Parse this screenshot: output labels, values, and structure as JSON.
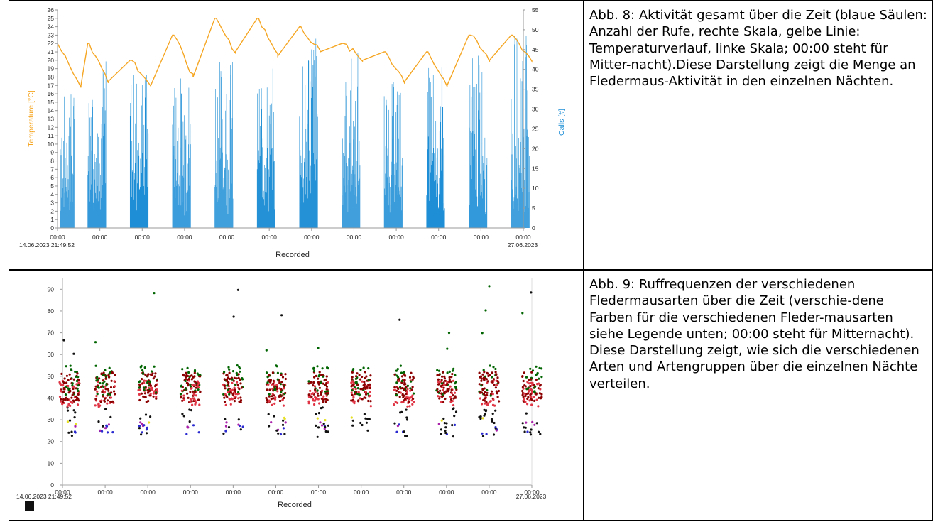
{
  "figure1": {
    "caption": "Abb. 8: Aktivität gesamt über die Zeit (blaue Säulen: Anzahl der Rufe, rechte Skala, gelbe Linie: Temperaturverlauf, linke Skala; 00:00 steht für Mitter-nacht).Diese Darstellung zeigt die Menge an Fledermaus-Aktivität in den einzelnen Nächten.",
    "chart_data": {
      "type": "bar",
      "xlabel": "Recorded",
      "ylabel_left": "Temperature [°C]",
      "ylabel_right": "Calls [#]",
      "ylim_left": [
        0,
        26
      ],
      "ylim_right": [
        0,
        55
      ],
      "y_ticks_left": [
        "0",
        "1",
        "2",
        "3",
        "4",
        "5",
        "6",
        "7",
        "8",
        "9",
        "10",
        "11",
        "12",
        "13",
        "14",
        "15",
        "16",
        "17",
        "18",
        "19",
        "20",
        "21",
        "22",
        "23",
        "24",
        "25",
        "26"
      ],
      "y_ticks_right": [
        "0",
        "5",
        "10",
        "15",
        "20",
        "25",
        "30",
        "35",
        "40",
        "45",
        "50",
        "55"
      ],
      "x_ticks": [
        "00:00",
        "00:00",
        "00:00",
        "00:00",
        "00:00",
        "00:00",
        "00:00",
        "00:00",
        "00:00",
        "00:00",
        "00:00",
        "00:00"
      ],
      "x_start_label": "14.06.2023 21:49:52",
      "x_end_label": "27.06.2023",
      "night_peak_calls": [
        35,
        43,
        40,
        39,
        43,
        41,
        51,
        46,
        37,
        41,
        44,
        49
      ],
      "temperature_night_start": [
        22,
        22,
        20,
        23,
        25,
        25,
        24,
        22,
        21,
        21,
        23,
        23
      ],
      "temperature_night_end": [
        17,
        17.5,
        17,
        18,
        21,
        20.5,
        21,
        20,
        17.5,
        17,
        20,
        20
      ],
      "colors": {
        "calls": "#1f8fd6",
        "temperature": "#f5a623"
      }
    }
  },
  "figure2": {
    "caption": "Abb. 9: Ruffrequenzen der verschiedenen Fledermausarten über die Zeit (verschie-dene Farben für die verschiedenen Fleder-mausarten siehe Legende unten; 00:00 steht für Mitternacht). Diese Darstellung zeigt, wie sich die verschiedenen Arten und Artengruppen über die einzelnen Nächte verteilen.",
    "chart_data": {
      "type": "scatter",
      "xlabel": "Recorded",
      "ylim": [
        0,
        95
      ],
      "y_ticks": [
        "0",
        "10",
        "20",
        "30",
        "40",
        "50",
        "60",
        "70",
        "80",
        "90"
      ],
      "x_ticks": [
        "00:00",
        "00:00",
        "00:00",
        "00:00",
        "00:00",
        "00:00",
        "00:00",
        "00:00",
        "00:00",
        "00:00",
        "00:00",
        "00:00"
      ],
      "x_start_label": "14.06.2023 21:49:52",
      "x_end_label": "27.06.2023",
      "series_colors": [
        "#006400",
        "#8b0000",
        "#e03545",
        "#111111",
        "#2a2ad0",
        "#aa22aa",
        "#e6e020"
      ],
      "band_center": 45,
      "band_halfwidth": 7
    }
  }
}
